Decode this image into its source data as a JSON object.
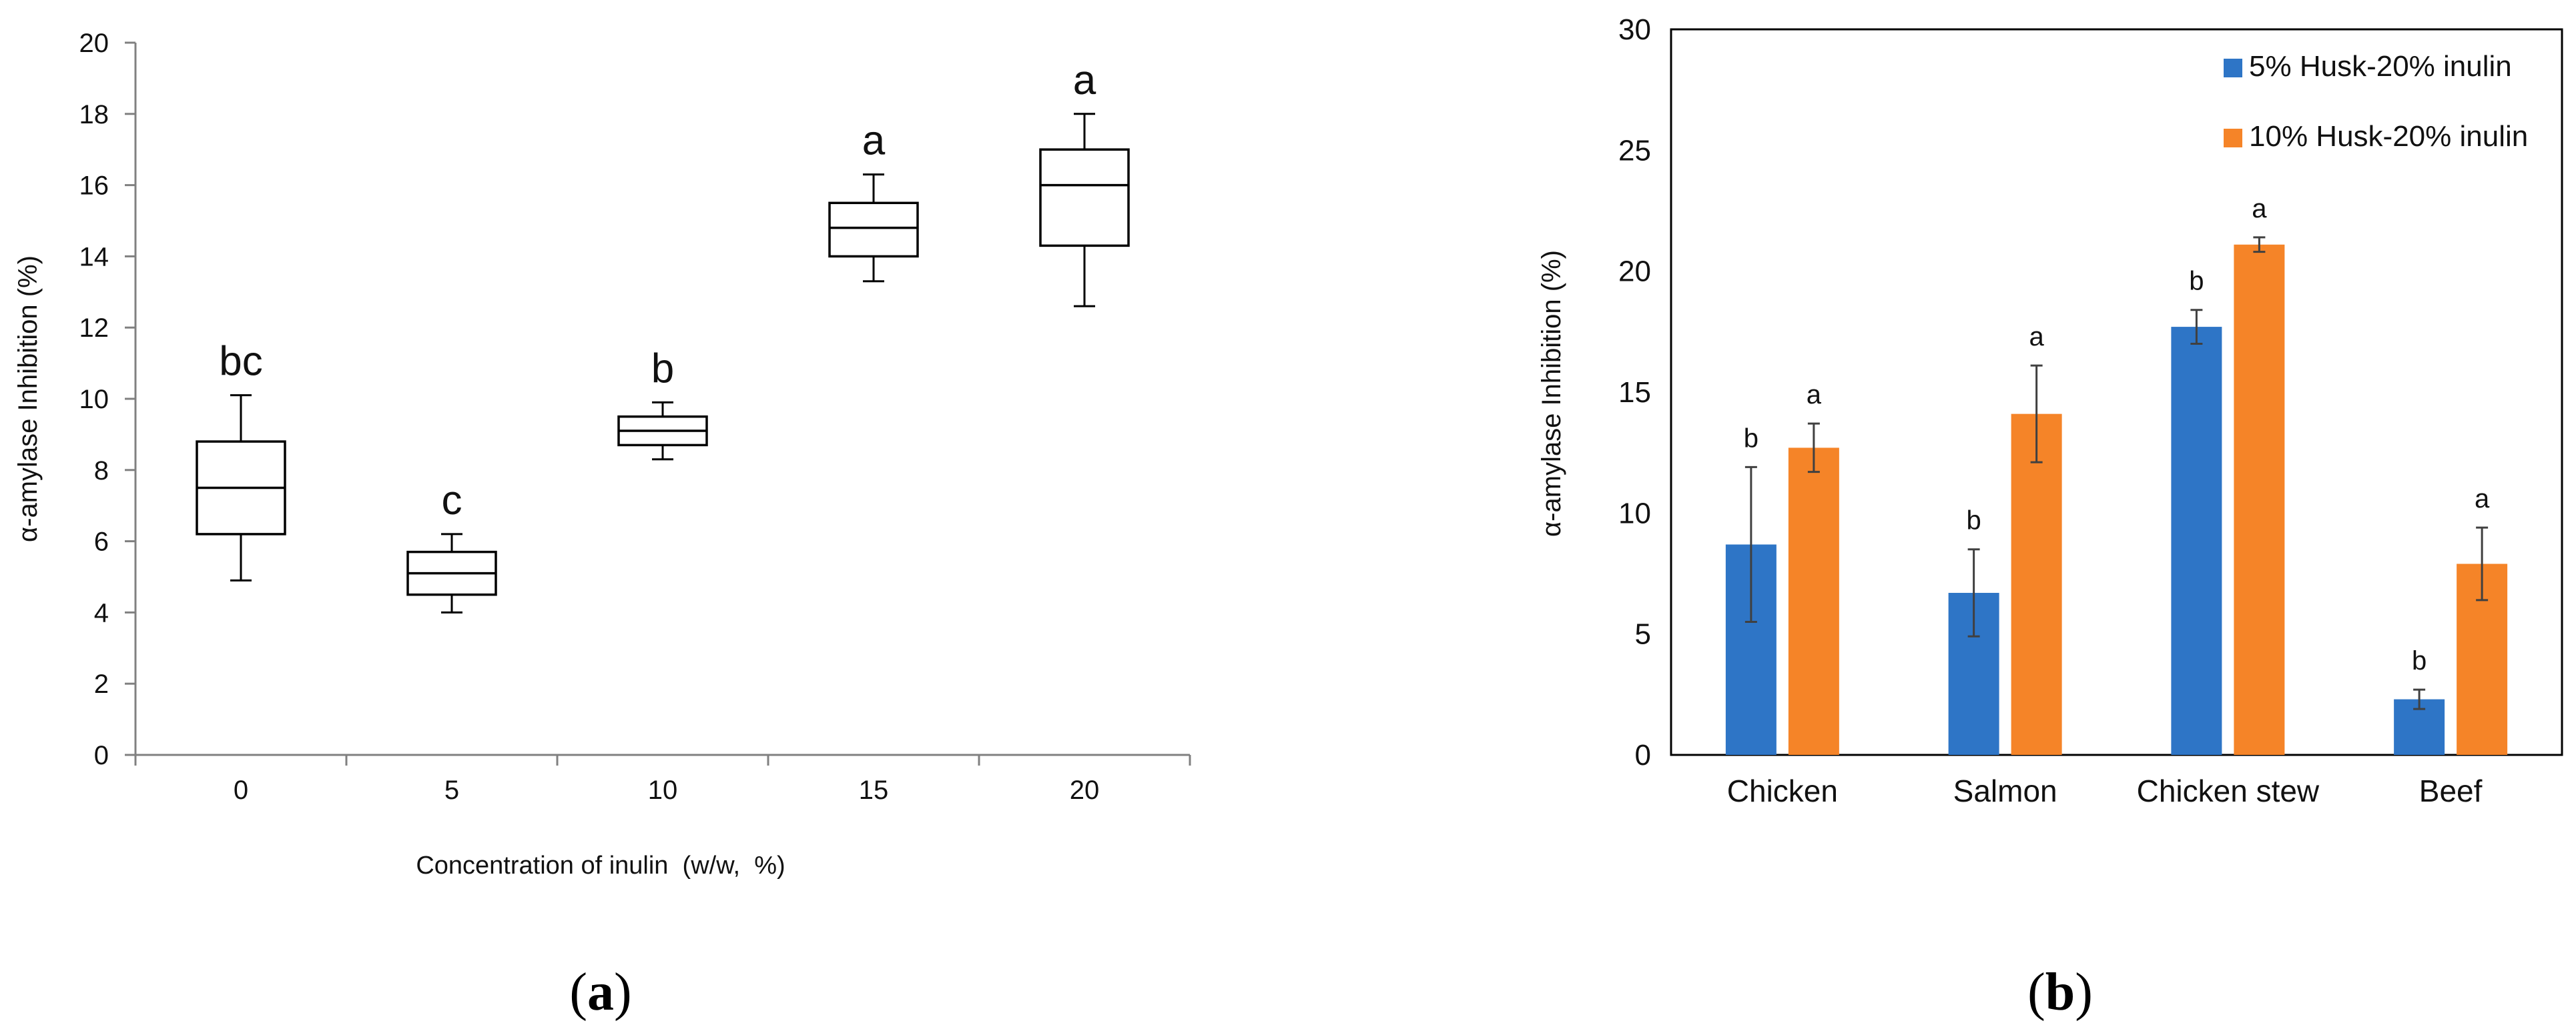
{
  "chart_data": [
    {
      "type": "box",
      "panel_label": "(a)",
      "panel_letter": "a",
      "title": "",
      "xlabel": "Concentration of inulin  (w/w,  %)",
      "ylabel": "α-amylase Inhibition (%)",
      "ylim": [
        0,
        20
      ],
      "yticks": [
        0,
        2,
        4,
        6,
        8,
        10,
        12,
        14,
        16,
        18,
        20
      ],
      "categories": [
        "0",
        "5",
        "10",
        "15",
        "20"
      ],
      "boxes": [
        {
          "x": "0",
          "min": 4.9,
          "q1": 6.2,
          "median": 7.5,
          "q3": 8.8,
          "max": 10.1,
          "letter": "bc"
        },
        {
          "x": "5",
          "min": 4.0,
          "q1": 4.5,
          "median": 5.1,
          "q3": 5.7,
          "max": 6.2,
          "letter": "c"
        },
        {
          "x": "10",
          "min": 8.3,
          "q1": 8.7,
          "median": 9.1,
          "q3": 9.5,
          "max": 9.9,
          "letter": "b"
        },
        {
          "x": "15",
          "min": 13.3,
          "q1": 14.0,
          "median": 14.8,
          "q3": 15.5,
          "max": 16.3,
          "letter": "a"
        },
        {
          "x": "20",
          "min": 12.6,
          "q1": 14.3,
          "median": 16.0,
          "q3": 17.0,
          "max": 18.0,
          "letter": "a"
        }
      ],
      "grid": false
    },
    {
      "type": "bar",
      "panel_label": "(b)",
      "panel_letter": "b",
      "title": "",
      "xlabel": "",
      "ylabel": "α-amylase Inhibition (%)",
      "ylim": [
        0,
        30
      ],
      "yticks": [
        0,
        5,
        10,
        15,
        20,
        25,
        30
      ],
      "categories": [
        "Chicken",
        "Salmon",
        "Chicken stew",
        "Beef"
      ],
      "series": [
        {
          "name": "5% Husk-20% inulin",
          "color": "#2e75c6",
          "values": [
            8.7,
            6.7,
            17.7,
            2.3
          ],
          "errors": [
            3.2,
            1.8,
            0.7,
            0.4
          ],
          "letters": [
            "b",
            "b",
            "b",
            "b"
          ]
        },
        {
          "name": "10% Husk-20% inulin",
          "color": "#f58428",
          "values": [
            12.7,
            14.1,
            21.1,
            7.9
          ],
          "errors": [
            1.0,
            2.0,
            0.3,
            1.5
          ],
          "letters": [
            "a",
            "a",
            "a",
            "a"
          ]
        }
      ],
      "legend": "top-right",
      "grid": false
    }
  ]
}
